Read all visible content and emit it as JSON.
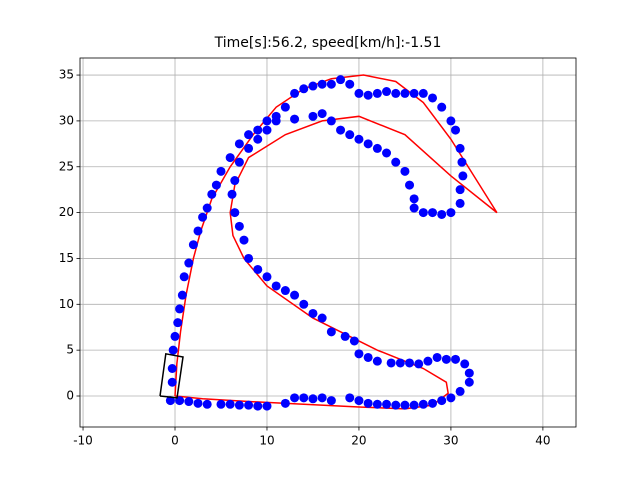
{
  "chart_data": {
    "type": "trajectory",
    "title": "Time[s]:56.2, speed[km/h]:-1.51",
    "xlim": [
      -10.33,
      43.6
    ],
    "ylim": [
      -3.38,
      36.86
    ],
    "xticks": [
      -10,
      0,
      10,
      20,
      30,
      40
    ],
    "yticks": [
      0,
      5,
      10,
      15,
      20,
      25,
      30,
      35
    ],
    "grid": true,
    "series": [
      {
        "mode": "line",
        "color": "#ff0000",
        "x": [
          0,
          3,
          8,
          14,
          20,
          25,
          28,
          29.7,
          29.5,
          27,
          22,
          15,
          10,
          7.5,
          6.3,
          6,
          6.5,
          8,
          12,
          16,
          20,
          25,
          30,
          35,
          30,
          27,
          24,
          20.5,
          17,
          14,
          11,
          8.5,
          6,
          4,
          2.8,
          2,
          1.2,
          0.6,
          0.2,
          0
        ],
        "y": [
          0,
          -0.3,
          -0.6,
          -0.9,
          -1.2,
          -1.4,
          -1,
          0.3,
          1.5,
          3,
          5,
          8.5,
          12,
          15,
          17.5,
          20,
          23,
          26,
          28.5,
          30,
          30.5,
          28.5,
          24,
          20,
          28,
          32,
          34.3,
          35,
          34.6,
          33.5,
          31.5,
          28.5,
          25,
          21.5,
          18,
          15,
          11,
          7,
          3.5,
          0
        ]
      },
      {
        "mode": "markers",
        "color": "#0000ff",
        "x": [
          0.5,
          1.5,
          2.5,
          3.5,
          5,
          6,
          7,
          8,
          9,
          10,
          12,
          13,
          14,
          15,
          16,
          17,
          19,
          20,
          21,
          22,
          23,
          24,
          25,
          26,
          27,
          28,
          29,
          30,
          31,
          32,
          32,
          31.5,
          30.5,
          29.5,
          28.5,
          27.5,
          26.5,
          25.5,
          24.5,
          23.5,
          22,
          21,
          20,
          19.5,
          18.5,
          17,
          16,
          15,
          14,
          13,
          12,
          11,
          10,
          9,
          8,
          7.5,
          7,
          6.5,
          6.2,
          6.5,
          7,
          8,
          9,
          10,
          11,
          13,
          15,
          16,
          17,
          18,
          19,
          20,
          21,
          22,
          23,
          24,
          25,
          25.5,
          26,
          26,
          27,
          28,
          29,
          30,
          31,
          31,
          31.3,
          31.2,
          31,
          30.5,
          30,
          29,
          28,
          27,
          26,
          25,
          24,
          23,
          22,
          21,
          20,
          19,
          18,
          17,
          16,
          15,
          14,
          13,
          12,
          11,
          10,
          9,
          8,
          7,
          6,
          5,
          4.5,
          4,
          3.5,
          3,
          2.5,
          2,
          1.5,
          1,
          0.8,
          0.5,
          0.3,
          0,
          -0.2,
          -0.3,
          -0.3,
          -0.5
        ],
        "y": [
          -0.5,
          -0.6,
          -0.8,
          -0.9,
          -0.9,
          -0.9,
          -1,
          -1,
          -1.1,
          -1.1,
          -0.8,
          -0.2,
          -0.2,
          -0.3,
          -0.2,
          -0.5,
          -0.2,
          -0.5,
          -0.8,
          -0.9,
          -0.9,
          -1,
          -1,
          -1,
          -0.9,
          -0.8,
          -0.5,
          -0.2,
          0.5,
          1.5,
          2.5,
          3.5,
          4,
          4,
          4.2,
          3.8,
          3.5,
          3.6,
          3.6,
          3.6,
          3.8,
          4.2,
          4.6,
          6,
          6.5,
          7,
          8.5,
          9,
          10,
          11,
          11.5,
          12,
          13,
          13.8,
          15,
          17,
          18.5,
          20,
          22,
          23.5,
          25.5,
          27,
          28,
          29,
          30,
          30.2,
          30.5,
          30.8,
          30,
          29,
          28.5,
          28,
          27.5,
          27,
          26.5,
          25.5,
          24.5,
          23,
          21.5,
          20.5,
          20,
          20,
          19.8,
          20,
          21,
          22.5,
          24,
          25.5,
          27,
          29,
          30,
          31.5,
          32.5,
          33,
          33,
          33,
          33,
          33.2,
          33,
          32.8,
          33,
          34,
          34.5,
          34,
          34,
          33.8,
          33.5,
          33,
          31.5,
          30.5,
          30,
          29,
          28.5,
          27.5,
          26,
          24.5,
          23,
          22,
          20.5,
          19.5,
          18,
          16.5,
          14.5,
          13,
          11,
          9.5,
          8,
          6.5,
          5,
          3,
          1.5,
          -0.5
        ]
      },
      {
        "mode": "line",
        "color": "#000000",
        "x": [
          -1.63,
          -1.0,
          0.87,
          0.22,
          -1.63
        ],
        "y": [
          0,
          4.6,
          4.25,
          -0.2,
          0
        ]
      }
    ]
  }
}
